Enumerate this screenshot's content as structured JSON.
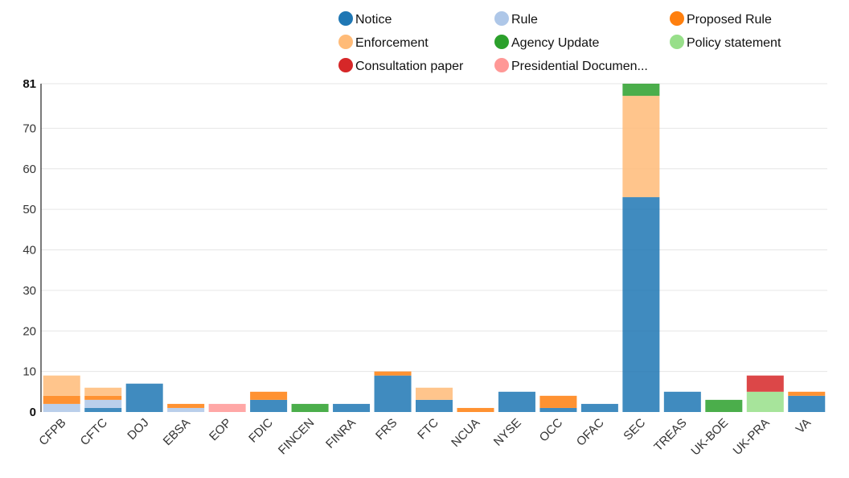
{
  "chart_data": {
    "type": "bar",
    "stacked": true,
    "title": "",
    "xlabel": "",
    "ylabel": "",
    "ylim": [
      0,
      81
    ],
    "yticks": [
      0,
      10,
      20,
      30,
      40,
      50,
      60,
      70,
      81
    ],
    "grid": true,
    "legend_position": "top-right",
    "categories": [
      "CFPB",
      "CFTC",
      "DOJ",
      "EBSA",
      "EOP",
      "FDIC",
      "FINCEN",
      "FINRA",
      "FRS",
      "FTC",
      "NCUA",
      "NYSE",
      "OCC",
      "OFAC",
      "SEC",
      "TREAS",
      "UK-BOE",
      "UK-PRA",
      "VA"
    ],
    "series": [
      {
        "name": "Notice",
        "color": "#1f77b4",
        "values": [
          0,
          1,
          7,
          0,
          0,
          3,
          0,
          2,
          9,
          3,
          0,
          5,
          1,
          2,
          53,
          5,
          0,
          0,
          4
        ]
      },
      {
        "name": "Rule",
        "color": "#aec7e8",
        "values": [
          2,
          2,
          0,
          1,
          0,
          0,
          0,
          0,
          0,
          0,
          0,
          0,
          0,
          0,
          0,
          0,
          0,
          0,
          0
        ]
      },
      {
        "name": "Proposed Rule",
        "color": "#ff7f0e",
        "values": [
          2,
          1,
          0,
          1,
          0,
          2,
          0,
          0,
          1,
          0,
          1,
          0,
          3,
          0,
          0,
          0,
          0,
          0,
          1
        ]
      },
      {
        "name": "Enforcement",
        "color": "#ffbb78",
        "values": [
          5,
          2,
          0,
          0,
          0,
          0,
          0,
          0,
          0,
          3,
          0,
          0,
          0,
          0,
          25,
          0,
          0,
          0,
          0
        ]
      },
      {
        "name": "Agency Update",
        "color": "#2ca02c",
        "values": [
          0,
          0,
          0,
          0,
          0,
          0,
          2,
          0,
          0,
          0,
          0,
          0,
          0,
          0,
          3,
          0,
          3,
          0,
          0
        ]
      },
      {
        "name": "Policy statement",
        "color": "#98df8a",
        "values": [
          0,
          0,
          0,
          0,
          0,
          0,
          0,
          0,
          0,
          0,
          0,
          0,
          0,
          0,
          0,
          0,
          0,
          5,
          0
        ]
      },
      {
        "name": "Consultation paper",
        "color": "#d62728",
        "values": [
          0,
          0,
          0,
          0,
          0,
          0,
          0,
          0,
          0,
          0,
          0,
          0,
          0,
          0,
          0,
          0,
          0,
          4,
          0
        ]
      },
      {
        "name": "Presidential Documen...",
        "color": "#ff9896",
        "values": [
          0,
          0,
          0,
          0,
          2,
          0,
          0,
          0,
          0,
          0,
          0,
          0,
          0,
          0,
          0,
          0,
          0,
          0,
          0
        ]
      }
    ]
  }
}
